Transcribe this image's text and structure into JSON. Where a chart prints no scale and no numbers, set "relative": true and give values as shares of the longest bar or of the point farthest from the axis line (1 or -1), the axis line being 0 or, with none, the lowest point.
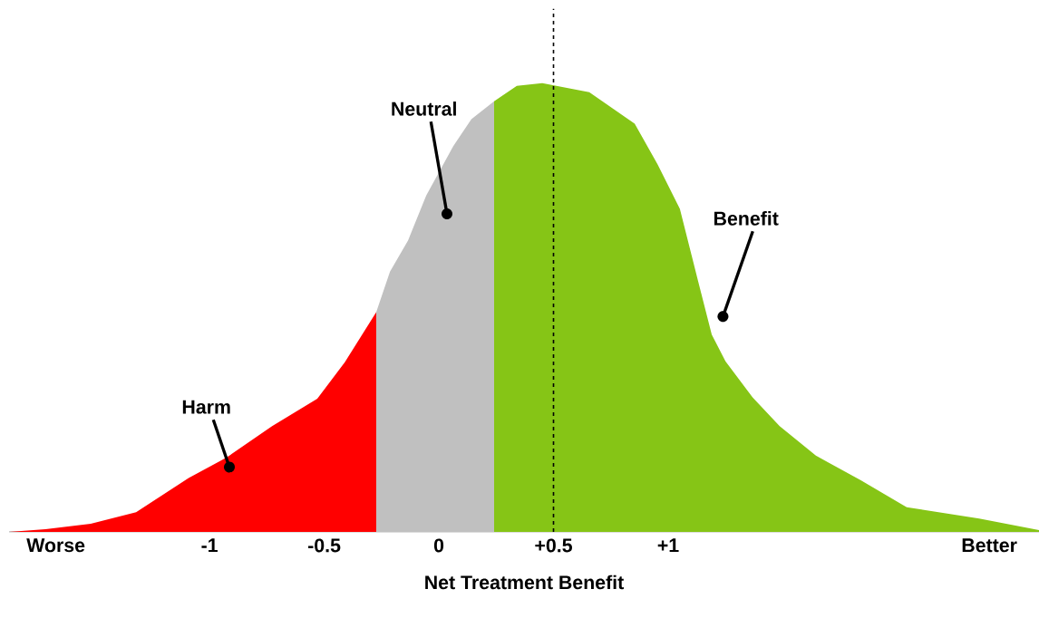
{
  "chart_data": {
    "type": "area",
    "relative": true,
    "xlabel": "Net Treatment Benefit",
    "xlim": [
      -1.874,
      2.617
    ],
    "xticks": [
      {
        "value": -1.67,
        "label": "Worse"
      },
      {
        "value": -1,
        "label": "-1"
      },
      {
        "value": -0.5,
        "label": "-0.5"
      },
      {
        "value": 0,
        "label": "0"
      },
      {
        "value": 0.5,
        "label": "+0.5"
      },
      {
        "value": 1,
        "label": "+1"
      },
      {
        "value": 2.4,
        "label": "Better"
      }
    ],
    "series": [
      {
        "name": "Harm",
        "color": "#ff0000",
        "x": [
          -1.874,
          -1.715,
          -1.518,
          -1.32,
          -1.091,
          -0.925,
          -0.727,
          -0.53,
          -0.41,
          -0.273
        ],
        "values": [
          0,
          0.006,
          0.018,
          0.044,
          0.12,
          0.166,
          0.236,
          0.297,
          0.378,
          0.49
        ]
      },
      {
        "name": "Neutral",
        "color": "#c0c0c0",
        "x": [
          -0.273,
          -0.213,
          -0.134,
          -0.055,
          0.063,
          0.142,
          0.241
        ],
        "values": [
          0.49,
          0.58,
          0.65,
          0.75,
          0.86,
          0.92,
          0.96
        ]
      },
      {
        "name": "Benefit",
        "color": "#86c516",
        "x": [
          0.241,
          0.34,
          0.451,
          0.656,
          0.854,
          0.953,
          1.051,
          1.13,
          1.19,
          1.25,
          1.368,
          1.486,
          1.644,
          1.84,
          2.04,
          2.356,
          2.617
        ],
        "values": [
          0.96,
          0.994,
          1.0,
          0.98,
          0.91,
          0.82,
          0.72,
          0.56,
          0.44,
          0.38,
          0.3,
          0.236,
          0.17,
          0.115,
          0.055,
          0.03,
          0.004
        ]
      }
    ],
    "ref_lines": [
      {
        "axis": "x",
        "value": 0.5,
        "color": "#000000",
        "line_style": "dashed"
      }
    ]
  }
}
